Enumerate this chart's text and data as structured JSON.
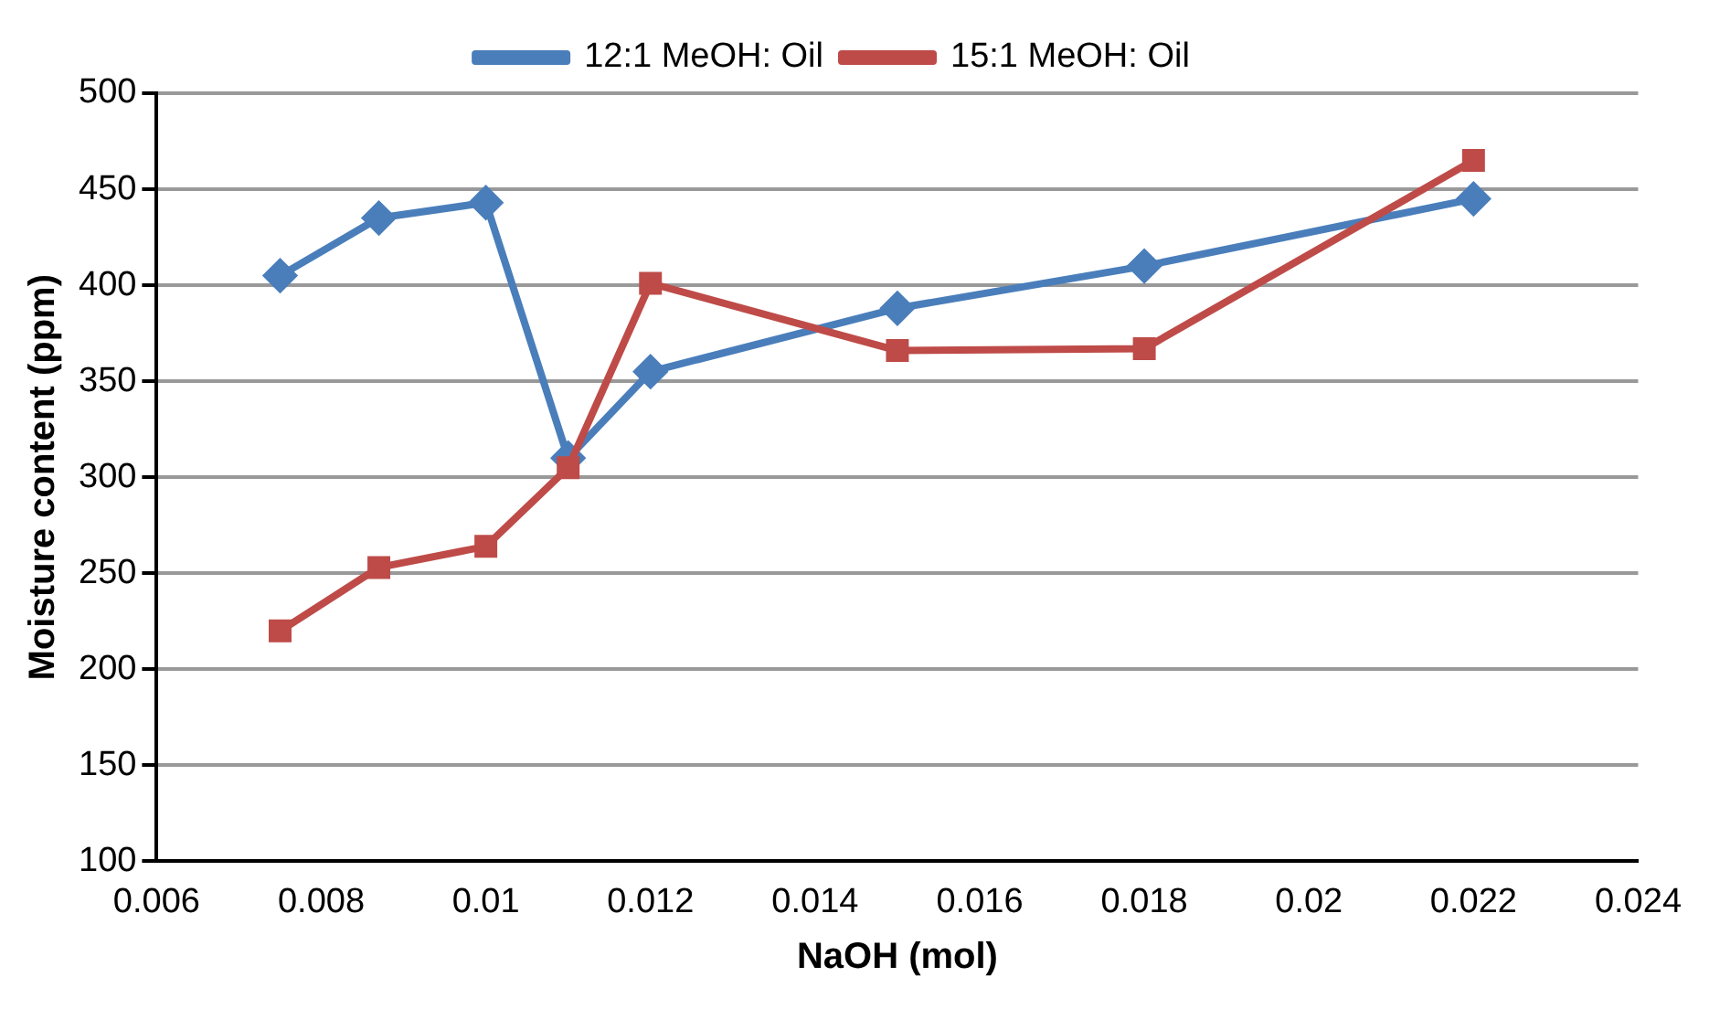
{
  "chart_data": {
    "type": "line",
    "xlabel": "NaOH (mol)",
    "ylabel": "Moisture content (ppm)",
    "xlim": [
      0.006,
      0.024
    ],
    "xticks": [
      0.006,
      0.008,
      0.01,
      0.012,
      0.014,
      0.016,
      0.018,
      0.02,
      0.022,
      0.024
    ],
    "ylim": [
      100,
      500
    ],
    "yticks": [
      100,
      150,
      200,
      250,
      300,
      350,
      400,
      450,
      500
    ],
    "grid": "y",
    "legend": "top",
    "series": [
      {
        "name": "12:1 MeOH: Oil",
        "color": "#4a7ebb",
        "marker": "diamond",
        "x": [
          0.0075,
          0.0087,
          0.01,
          0.011,
          0.012,
          0.015,
          0.018,
          0.022
        ],
        "values": [
          405,
          435,
          443,
          310,
          355,
          388,
          410,
          445
        ]
      },
      {
        "name": "15:1 MeOH: Oil",
        "color": "#be4b48",
        "marker": "square",
        "x": [
          0.0075,
          0.0087,
          0.01,
          0.011,
          0.012,
          0.015,
          0.018,
          0.022
        ],
        "values": [
          220,
          253,
          264,
          305,
          401,
          366,
          367,
          465
        ]
      }
    ]
  }
}
